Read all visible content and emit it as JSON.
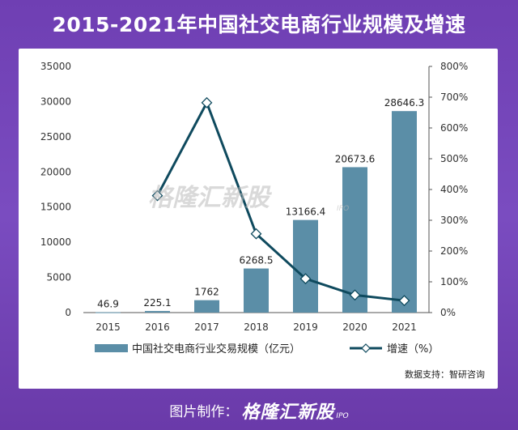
{
  "header": {
    "title": "2015-2021年中国社交电商行业规模及增速"
  },
  "chart_data": {
    "type": "bar",
    "categories": [
      "2015",
      "2016",
      "2017",
      "2018",
      "2019",
      "2020",
      "2021"
    ],
    "series": [
      {
        "name": "中国社交电商行业交易规模（亿元）",
        "type": "bar",
        "axis": "left",
        "values": [
          46.9,
          225.1,
          1762,
          6268.5,
          13166.4,
          20673.6,
          28646.3
        ],
        "labels": [
          "46.9",
          "225.1",
          "1762",
          "6268.5",
          "13166.4",
          "20673.6",
          "28646.3"
        ]
      },
      {
        "name": "增速（%）",
        "type": "line",
        "axis": "right",
        "values": [
          null,
          380,
          682,
          256,
          110,
          57,
          39
        ]
      }
    ],
    "y_left": {
      "ylim": [
        0,
        35000
      ],
      "ticks": [
        "0",
        "5000",
        "10000",
        "15000",
        "20000",
        "25000",
        "30000",
        "35000"
      ]
    },
    "y_right": {
      "ylim": [
        0,
        800
      ],
      "ticks": [
        "0%",
        "100%",
        "200%",
        "300%",
        "400%",
        "500%",
        "600%",
        "700%",
        "800%"
      ]
    },
    "legend_position": "bottom",
    "colors": {
      "bar": "#5b8ea7",
      "line": "#0f4a5e",
      "marker_fill": "#ffffff"
    }
  },
  "watermark": {
    "text": "格隆汇新股",
    "sub": "IPO"
  },
  "source": "数据支持：智研咨询",
  "footer": {
    "prefix": "图片制作：",
    "brand": "格隆汇新股",
    "sub": "IPO"
  }
}
